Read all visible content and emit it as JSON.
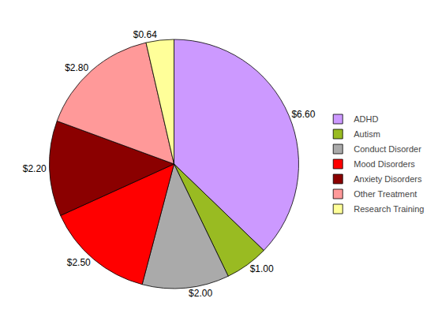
{
  "chart_data": {
    "type": "pie",
    "categories": [
      "ADHD",
      "Autism",
      "Conduct Disorder",
      "Mood Disorders",
      "Anxiety Disorders",
      "Other Treatment",
      "Research Training"
    ],
    "values": [
      6.6,
      1.0,
      2.0,
      2.5,
      2.2,
      2.8,
      0.64
    ],
    "value_labels": [
      "$6.60",
      "$1.00",
      "$2.00",
      "$2.50",
      "$2.20",
      "$2.80",
      "$0.64"
    ],
    "colors": [
      "#cc99ff",
      "#99bb22",
      "#aaaaaa",
      "#ff0000",
      "#8b0000",
      "#ff9999",
      "#ffff99"
    ],
    "data_labels": true,
    "legend": "right"
  }
}
